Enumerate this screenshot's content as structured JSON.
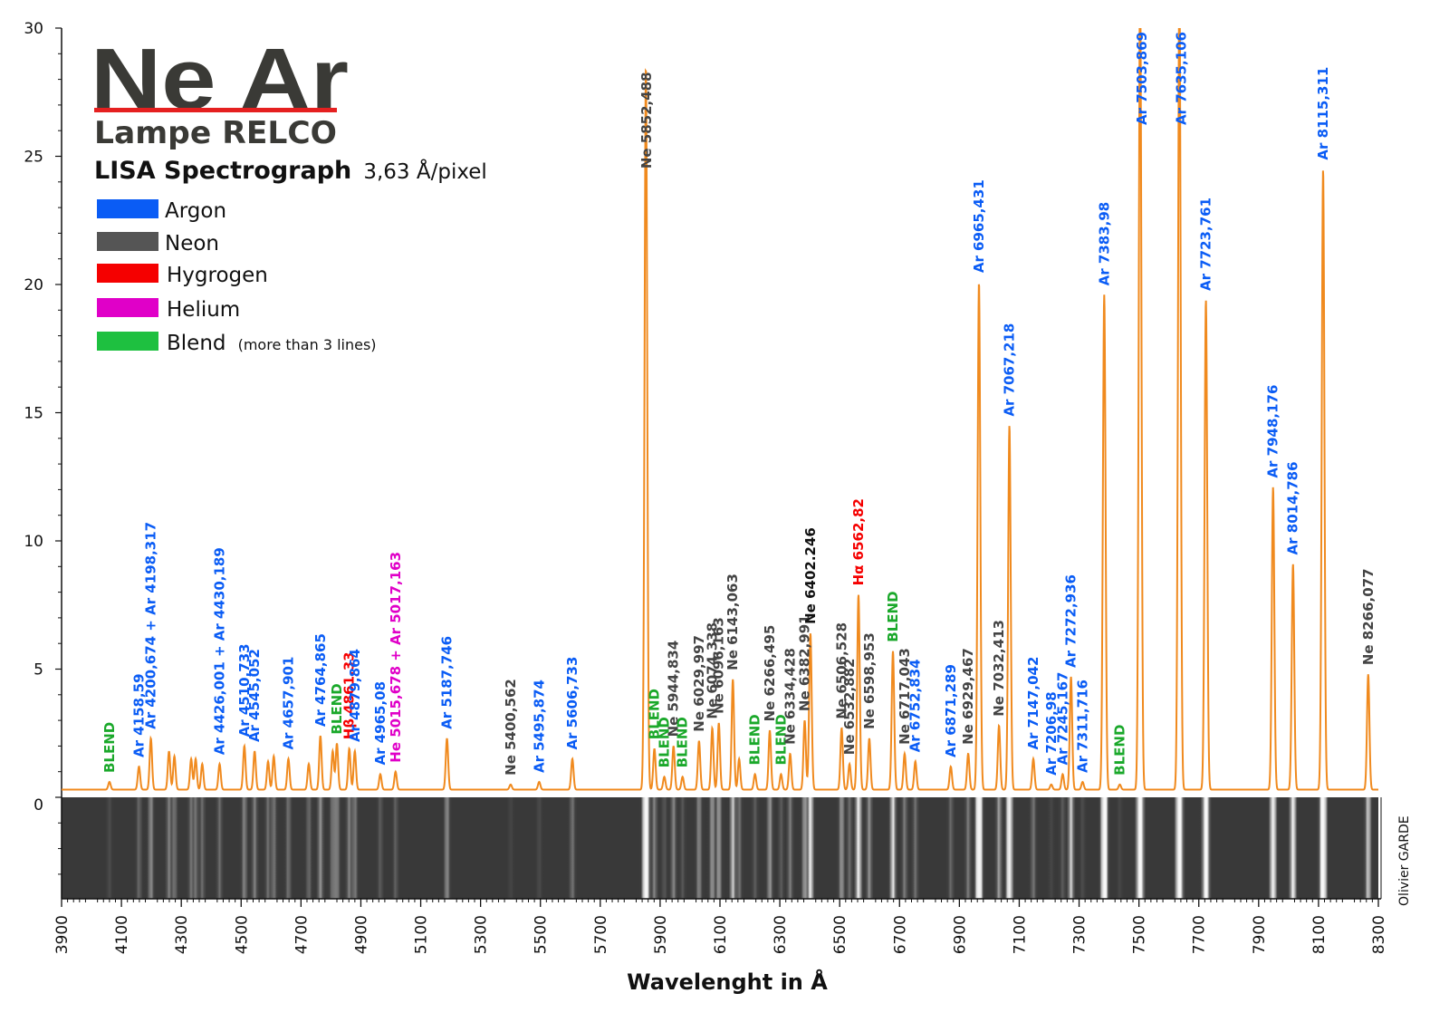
{
  "title": {
    "main": "Ne Ar",
    "lamp": "Lampe RELCO",
    "spectrograph": "LISA Spectrograph",
    "dispersion": "3,63 Å/pixel"
  },
  "credit": "Olivier GARDE",
  "legend": [
    {
      "label": "Argon",
      "note": "",
      "color": "#0a5cf5"
    },
    {
      "label": "Neon",
      "note": "",
      "color": "#555555"
    },
    {
      "label": "Hygrogen",
      "note": "",
      "color": "#f50000"
    },
    {
      "label": "Helium",
      "note": "",
      "color": "#e000c8"
    },
    {
      "label": "Blend",
      "note": "(more than 3 lines)",
      "color": "#1ec040"
    }
  ],
  "colors": {
    "spectrum": "#f08a1e",
    "argon": "#0a5cf5",
    "neon": "#444444",
    "hydrogen": "#f50000",
    "helium": "#e000c8",
    "blend": "#1aa82a",
    "title_underline": "#e52020"
  },
  "chart_data": {
    "type": "line",
    "title": "Ne Ar",
    "xlabel": "Wavelenght in Å",
    "ylabel": "",
    "xlim": [
      3900,
      8300
    ],
    "ylim": [
      0,
      30
    ],
    "x_ticks": [
      "3900",
      "4100",
      "4300",
      "4500",
      "4700",
      "4900",
      "5100",
      "5300",
      "5500",
      "5700",
      "5900",
      "6100",
      "6300",
      "6500",
      "6700",
      "6900",
      "7100",
      "7300",
      "7500",
      "7700",
      "7900",
      "8100",
      "8300"
    ],
    "y_ticks": [
      "0",
      "5",
      "10",
      "15",
      "20",
      "25",
      "30"
    ],
    "baseline": 0.3,
    "peaks": [
      {
        "x": 4060,
        "y": 0.6,
        "label": "BLEND",
        "type": "blend"
      },
      {
        "x": 4158.59,
        "y": 1.2,
        "label": "Ar 4158,59",
        "type": "argon"
      },
      {
        "x": 4198.3,
        "y": 2.3,
        "label": "Ar 4200,674 + Ar 4198,317",
        "type": "argon"
      },
      {
        "x": 4259,
        "y": 1.8,
        "label": "",
        "type": "none"
      },
      {
        "x": 4277,
        "y": 1.6,
        "label": "",
        "type": "none"
      },
      {
        "x": 4333,
        "y": 1.5,
        "label": "",
        "type": "none"
      },
      {
        "x": 4348,
        "y": 1.5,
        "label": "",
        "type": "none"
      },
      {
        "x": 4370,
        "y": 1.3,
        "label": "",
        "type": "none"
      },
      {
        "x": 4428,
        "y": 1.3,
        "label": "Ar 4426,001 + Ar 4430,189",
        "type": "argon"
      },
      {
        "x": 4510.733,
        "y": 2.0,
        "label": "Ar 4510,733",
        "type": "argon"
      },
      {
        "x": 4545.052,
        "y": 1.8,
        "label": "Ar 4545,052",
        "type": "argon"
      },
      {
        "x": 4590,
        "y": 1.4,
        "label": "",
        "type": "none"
      },
      {
        "x": 4609,
        "y": 1.6,
        "label": "",
        "type": "none"
      },
      {
        "x": 4657.901,
        "y": 1.5,
        "label": "Ar 4657,901",
        "type": "argon"
      },
      {
        "x": 4726,
        "y": 1.3,
        "label": "",
        "type": "none"
      },
      {
        "x": 4764.865,
        "y": 2.4,
        "label": "Ar 4764,865",
        "type": "argon"
      },
      {
        "x": 4806,
        "y": 1.8,
        "label": "",
        "type": "none"
      },
      {
        "x": 4820,
        "y": 2.1,
        "label": "BLEND",
        "type": "blend"
      },
      {
        "x": 4861.33,
        "y": 1.9,
        "label": "Hβ 4861,33",
        "type": "hydrogen"
      },
      {
        "x": 4879.864,
        "y": 1.8,
        "label": "Ar 4879,864",
        "type": "argon"
      },
      {
        "x": 4965.08,
        "y": 0.9,
        "label": "Ar 4965,08",
        "type": "argon"
      },
      {
        "x": 5016,
        "y": 1.0,
        "label": "He 5015,678 + Ar 5017,163",
        "type": "helium"
      },
      {
        "x": 5187.746,
        "y": 2.3,
        "label": "Ar 5187,746",
        "type": "argon"
      },
      {
        "x": 5400.562,
        "y": 0.5,
        "label": "Ne 5400,562",
        "type": "neon"
      },
      {
        "x": 5495.874,
        "y": 0.6,
        "label": "Ar 5495,874",
        "type": "argon"
      },
      {
        "x": 5606.733,
        "y": 1.5,
        "label": "Ar 5606,733",
        "type": "argon"
      },
      {
        "x": 5852.488,
        "y": 28.5,
        "label": "Ne 5852,488",
        "type": "neon"
      },
      {
        "x": 5881,
        "y": 1.9,
        "label": "BLEND",
        "type": "blend"
      },
      {
        "x": 5914,
        "y": 0.8,
        "label": "BLEND",
        "type": "blend"
      },
      {
        "x": 5944.834,
        "y": 2.0,
        "label": "Ne 5944,834",
        "type": "neon"
      },
      {
        "x": 5975,
        "y": 0.8,
        "label": "BLEND",
        "type": "blend"
      },
      {
        "x": 6029.997,
        "y": 2.2,
        "label": "Ne 6029,997",
        "type": "neon"
      },
      {
        "x": 6074.338,
        "y": 2.7,
        "label": "Ne 6074,338",
        "type": "neon"
      },
      {
        "x": 6096.163,
        "y": 2.9,
        "label": "Ne 6096,163",
        "type": "neon"
      },
      {
        "x": 6143.063,
        "y": 4.6,
        "label": "Ne 6143,063",
        "type": "neon"
      },
      {
        "x": 6164,
        "y": 1.5,
        "label": "",
        "type": "none"
      },
      {
        "x": 6217,
        "y": 0.9,
        "label": "BLEND",
        "type": "blend"
      },
      {
        "x": 6266.495,
        "y": 2.6,
        "label": "Ne 6266,495",
        "type": "neon"
      },
      {
        "x": 6304,
        "y": 0.9,
        "label": "BLEND",
        "type": "blend"
      },
      {
        "x": 6334.428,
        "y": 1.7,
        "label": "Ne 6334,428",
        "type": "neon"
      },
      {
        "x": 6382.991,
        "y": 3.0,
        "label": "Ne 6382,991",
        "type": "neon"
      },
      {
        "x": 6402.246,
        "y": 6.4,
        "label": "Ne 6402.246",
        "type": "neon-bold"
      },
      {
        "x": 6506.528,
        "y": 2.7,
        "label": "Ne 6506,528",
        "type": "neon"
      },
      {
        "x": 6532.882,
        "y": 1.3,
        "label": "Ne 6532,882",
        "type": "neon"
      },
      {
        "x": 6562.82,
        "y": 7.9,
        "label": "Hα 6562,82",
        "type": "hydrogen"
      },
      {
        "x": 6598.953,
        "y": 2.3,
        "label": "Ne 6598,953",
        "type": "neon"
      },
      {
        "x": 6678,
        "y": 5.7,
        "label": "BLEND",
        "type": "blend"
      },
      {
        "x": 6717.043,
        "y": 1.7,
        "label": "Ne 6717,043",
        "type": "neon"
      },
      {
        "x": 6752.834,
        "y": 1.4,
        "label": "Ar 6752,834",
        "type": "argon"
      },
      {
        "x": 6871.289,
        "y": 1.2,
        "label": "Ar 6871,289",
        "type": "argon"
      },
      {
        "x": 6929.467,
        "y": 1.7,
        "label": "Ne 6929,467",
        "type": "neon"
      },
      {
        "x": 6965.431,
        "y": 20.1,
        "label": "Ar 6965,431",
        "type": "argon"
      },
      {
        "x": 7032.413,
        "y": 2.8,
        "label": "Ne 7032,413",
        "type": "neon"
      },
      {
        "x": 7067.218,
        "y": 14.5,
        "label": "Ar 7067,218",
        "type": "argon"
      },
      {
        "x": 7147.042,
        "y": 1.5,
        "label": "Ar 7147,042",
        "type": "argon"
      },
      {
        "x": 7206.98,
        "y": 0.5,
        "label": "Ar 7206,98",
        "type": "argon"
      },
      {
        "x": 7245.167,
        "y": 0.9,
        "label": "Ar 7245,167",
        "type": "argon"
      },
      {
        "x": 7272.936,
        "y": 4.7,
        "label": "Ar 7272,936",
        "type": "argon"
      },
      {
        "x": 7311.716,
        "y": 0.6,
        "label": "Ar 7311,716",
        "type": "argon"
      },
      {
        "x": 7383.98,
        "y": 19.6,
        "label": "Ar 7383,98",
        "type": "argon"
      },
      {
        "x": 7436,
        "y": 0.5,
        "label": "BLEND",
        "type": "blend"
      },
      {
        "x": 7503.869,
        "y": 32,
        "label": "Ar 7503,869",
        "type": "argon"
      },
      {
        "x": 7635.106,
        "y": 32,
        "label": "Ar 7635,106",
        "type": "argon"
      },
      {
        "x": 7723.761,
        "y": 19.4,
        "label": "Ar 7723,761",
        "type": "argon"
      },
      {
        "x": 7948.176,
        "y": 12.1,
        "label": "Ar 7948,176",
        "type": "argon"
      },
      {
        "x": 8014.786,
        "y": 9.1,
        "label": "Ar 8014,786",
        "type": "argon"
      },
      {
        "x": 8115.311,
        "y": 24.5,
        "label": "Ar 8115,311",
        "type": "argon"
      },
      {
        "x": 8266.077,
        "y": 4.8,
        "label": "Ne 8266,077",
        "type": "neon"
      }
    ]
  }
}
